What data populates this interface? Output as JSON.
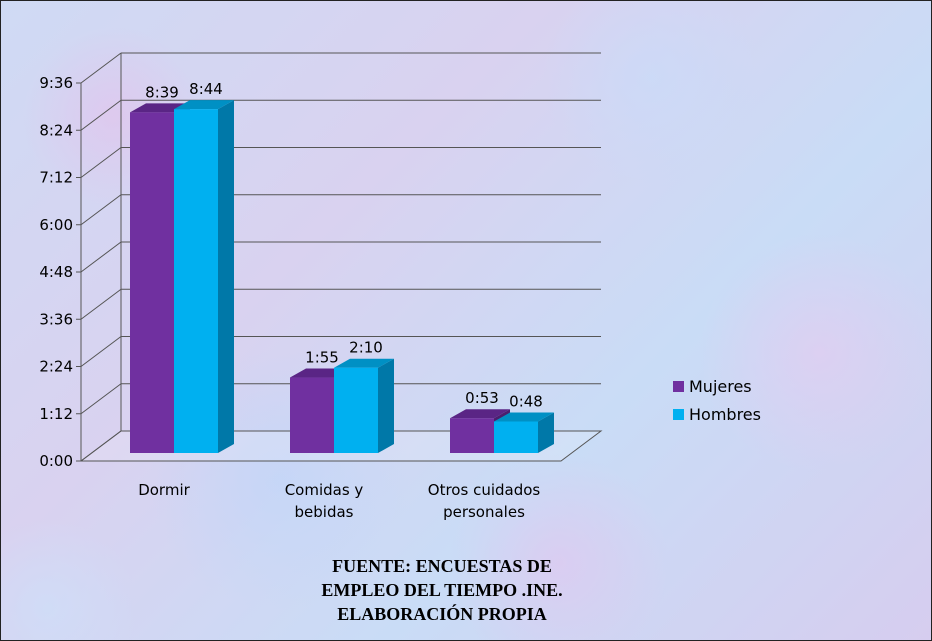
{
  "chart_data": {
    "type": "bar",
    "categories": [
      "Dormir",
      "Comidas y bebidas",
      "Otros cuidados personales"
    ],
    "category_lines": [
      [
        "Dormir"
      ],
      [
        "Comidas y",
        "bebidas"
      ],
      [
        "Otros cuidados",
        "personales"
      ]
    ],
    "series": [
      {
        "name": "Mujeres",
        "color": "#7030a0",
        "values": [
          519,
          115,
          53
        ],
        "labels": [
          "8:39",
          "1:55",
          "0:53"
        ]
      },
      {
        "name": "Hombres",
        "color": "#00b0f0",
        "values": [
          524,
          130,
          48
        ],
        "labels": [
          "8:44",
          "2:10",
          "0:48"
        ]
      }
    ],
    "y_ticks": [
      {
        "value": 0,
        "label": "0:00"
      },
      {
        "value": 72,
        "label": "1:12"
      },
      {
        "value": 144,
        "label": "2:24"
      },
      {
        "value": 216,
        "label": "3:36"
      },
      {
        "value": 288,
        "label": "4:48"
      },
      {
        "value": 360,
        "label": "6:00"
      },
      {
        "value": 432,
        "label": "7:12"
      },
      {
        "value": 504,
        "label": "8:24"
      },
      {
        "value": 576,
        "label": "9:36"
      }
    ],
    "ylim": [
      0,
      576
    ],
    "grid": true,
    "legend": "right",
    "title": "",
    "xlabel": "",
    "ylabel": ""
  },
  "source_lines": [
    "FUENTE:  ENCUESTAS DE",
    "EMPLEO DEL TIEMPO .INE.",
    "ELABORACIÓN PROPIA"
  ]
}
